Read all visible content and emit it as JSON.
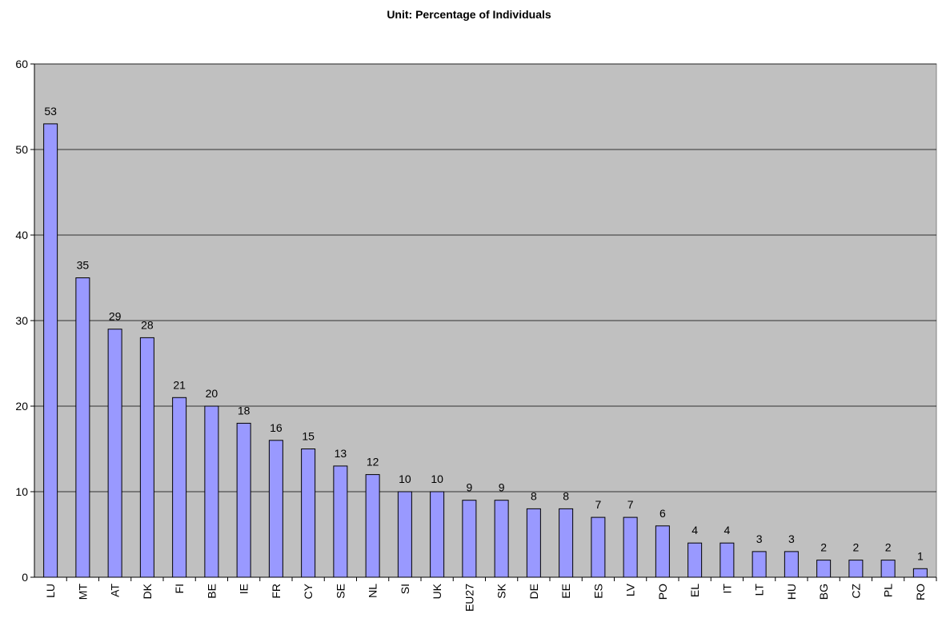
{
  "chart_data": {
    "type": "bar",
    "title": "Unit: Percentage of Individuals",
    "categories": [
      "LU",
      "MT",
      "AT",
      "DK",
      "FI",
      "BE",
      "IE",
      "FR",
      "CY",
      "SE",
      "NL",
      "SI",
      "UK",
      "EU27",
      "SK",
      "DE",
      "EE",
      "ES",
      "LV",
      "PO",
      "EL",
      "IT",
      "LT",
      "HU",
      "BG",
      "CZ",
      "PL",
      "RO"
    ],
    "values": [
      53,
      35,
      29,
      28,
      21,
      20,
      18,
      16,
      15,
      13,
      12,
      10,
      10,
      9,
      9,
      8,
      8,
      7,
      7,
      6,
      4,
      4,
      3,
      3,
      2,
      2,
      2,
      1
    ],
    "color": "#9999ff",
    "ylim": [
      0,
      60
    ],
    "yticks": [
      0,
      10,
      20,
      30,
      40,
      50,
      60
    ],
    "grid": true
  }
}
